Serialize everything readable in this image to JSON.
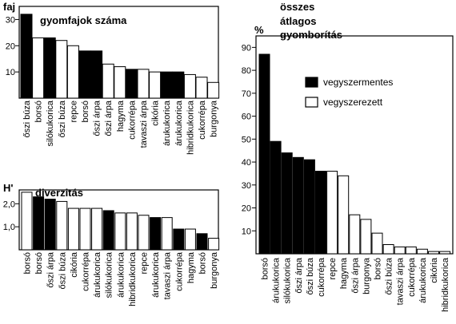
{
  "chart_data": [
    {
      "type": "bar",
      "title": "gyomfajok száma",
      "ylabel": "faj",
      "ylim": [
        0,
        35
      ],
      "yticks": [
        10,
        20,
        30
      ],
      "categories": [
        "őszi búza",
        "borsó",
        "silókukorica",
        "őszi búza",
        "repce",
        "borsó",
        "őszi árpa",
        "őszi árpa",
        "hagyma",
        "cukorrépa",
        "tavaszi árpa",
        "cikória",
        "árukukorica",
        "árukukorica",
        "hibridkukorica",
        "cukorrépa",
        "burgonya"
      ],
      "values": [
        32,
        23,
        23,
        22,
        20,
        18,
        18,
        13,
        12,
        11,
        11,
        10,
        10,
        10,
        9,
        8,
        6
      ],
      "treatment": [
        "vegyszermentes",
        "vegyszerezett",
        "vegyszermentes",
        "vegyszerezett",
        "vegyszerezett",
        "vegyszermentes",
        "vegyszermentes",
        "vegyszerezett",
        "vegyszerezett",
        "vegyszermentes",
        "vegyszerezett",
        "vegyszerezett",
        "vegyszermentes",
        "vegyszermentes",
        "vegyszerezett",
        "vegyszerezett",
        "vegyszerezett"
      ]
    },
    {
      "type": "bar",
      "title": "diverzitás",
      "ylabel": "H'",
      "ylim": [
        0,
        2.6
      ],
      "yticks": [
        "1,0",
        "2,0"
      ],
      "yticks_values": [
        1.0,
        2.0
      ],
      "categories": [
        "borsó",
        "borsó",
        "őszi árpa",
        "őszi búza",
        "cikória",
        "cukorrépa",
        "árukukorica",
        "silókukorica",
        "árukukorica",
        "hibridkukorica",
        "repce",
        "árukukorica",
        "tavaszi árpa",
        "cukorrépa",
        "hagyma",
        "borsó",
        "burgonya"
      ],
      "values": [
        2.5,
        2.3,
        2.2,
        2.1,
        1.8,
        1.8,
        1.8,
        1.7,
        1.6,
        1.6,
        1.5,
        1.4,
        1.4,
        0.9,
        0.9,
        0.7,
        0.5
      ],
      "treatment": [
        "vegyszerezett",
        "vegyszermentes",
        "vegyszermentes",
        "vegyszerezett",
        "vegyszerezett",
        "vegyszerezett",
        "vegyszerezett",
        "vegyszermentes",
        "vegyszerezett",
        "vegyszerezett",
        "vegyszerezett",
        "vegyszermentes",
        "vegyszerezett",
        "vegyszermentes",
        "vegyszerezett",
        "vegyszermentes",
        "vegyszerezett"
      ]
    },
    {
      "type": "bar",
      "title_lines": [
        "összes",
        "átlagos",
        "gyomborítás"
      ],
      "ylabel": "%",
      "ylim": [
        0,
        95
      ],
      "yticks": [
        10,
        20,
        30,
        40,
        50,
        60,
        70,
        80,
        90
      ],
      "categories": [
        "borsó",
        "árukukorica",
        "silókukorica",
        "őszi árpa",
        "őszi búza",
        "cukorrépa",
        "repce",
        "hagyma",
        "őszi árpa",
        "burgonya",
        "borsó",
        "őszi búza",
        "tavaszi árpa",
        "cukorrépa",
        "árukukorica",
        "cikória",
        "hibridkukorica"
      ],
      "values": [
        87,
        49,
        44,
        42,
        41,
        36,
        36,
        34,
        17,
        15,
        9,
        4,
        3,
        3,
        2,
        1,
        1
      ],
      "treatment": [
        "vegyszermentes",
        "vegyszermentes",
        "vegyszermentes",
        "vegyszermentes",
        "vegyszermentes",
        "vegyszermentes",
        "vegyszerezett",
        "vegyszerezett",
        "vegyszerezett",
        "vegyszerezett",
        "vegyszerezett",
        "vegyszerezett",
        "vegyszerezett",
        "vegyszerezett",
        "vegyszerezett",
        "vegyszerezett",
        "vegyszerezett"
      ],
      "legend": [
        {
          "label": "vegyszermentes",
          "color": "#000000"
        },
        {
          "label": "vegyszerezett",
          "color": "#ffffff"
        }
      ],
      "legend_position": "top-right"
    }
  ],
  "colors": {
    "vegyszermentes": "#000000",
    "vegyszerezett": "#ffffff",
    "outline": "#000000"
  }
}
